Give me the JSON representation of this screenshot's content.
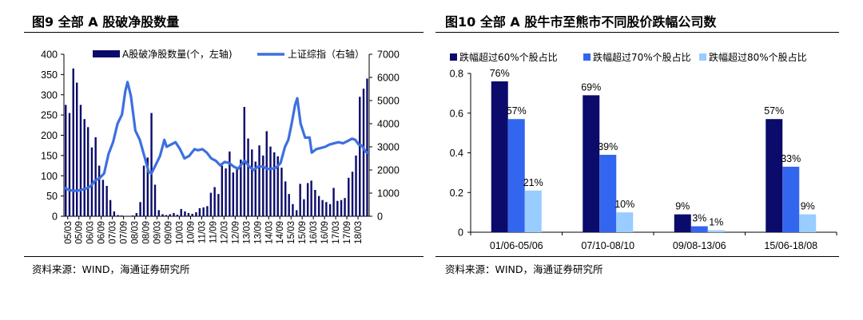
{
  "left_panel": {
    "title": "图9  全部 A 股破净股数量",
    "source": "资料来源：WIND，海通证券研究所"
  },
  "right_panel": {
    "title": "图10 全部 A 股牛市至熊市不同股价跌幅公司数",
    "source": "资料来源：WIND，海通证券研究所"
  },
  "colors": {
    "navy": "#0b0b6b",
    "blue_line": "#3d6fe0",
    "mid_blue": "#3366ee",
    "light_blue": "#99ccff"
  },
  "chart_data": [
    {
      "type": "bar",
      "title": "图9  全部 A 股破净股数量",
      "legend": [
        "A股破净股数量(个，左轴)",
        "上证综指（右轴）"
      ],
      "legend_position": "top-right",
      "x_tick_labels": [
        "05/03",
        "05/09",
        "06/03",
        "06/09",
        "07/03",
        "07/09",
        "08/03",
        "08/09",
        "09/03",
        "09/09",
        "10/03",
        "10/09",
        "11/03",
        "11/09",
        "12/03",
        "12/09",
        "13/03",
        "13/09",
        "14/03",
        "14/09",
        "15/03",
        "15/09",
        "16/03",
        "16/09",
        "17/03",
        "17/09",
        "18/03"
      ],
      "y_left_ticks": [
        "0",
        "50",
        "100",
        "150",
        "200",
        "250",
        "300",
        "350",
        "400"
      ],
      "y_left_range": [
        0,
        400
      ],
      "y_right_ticks": [
        "0",
        "1000",
        "2000",
        "3000",
        "4000",
        "5000",
        "6000",
        "7000"
      ],
      "y_right_range": [
        0,
        7000
      ],
      "x_range_years": [
        2005.0,
        2018.67
      ],
      "series": [
        {
          "name": "A股破净股数量(个，左轴)",
          "type": "bar",
          "axis": "left",
          "x": [
            2005.08,
            2005.25,
            2005.42,
            2005.58,
            2005.75,
            2005.92,
            2006.08,
            2006.25,
            2006.42,
            2006.58,
            2006.75,
            2006.92,
            2007.08,
            2007.25,
            2007.42,
            2007.58,
            2007.75,
            2007.92,
            2008.08,
            2008.25,
            2008.42,
            2008.58,
            2008.75,
            2008.92,
            2009.08,
            2009.25,
            2009.42,
            2009.58,
            2009.75,
            2009.92,
            2010.08,
            2010.25,
            2010.42,
            2010.58,
            2010.75,
            2010.92,
            2011.08,
            2011.25,
            2011.42,
            2011.58,
            2011.75,
            2011.92,
            2012.08,
            2012.25,
            2012.42,
            2012.58,
            2012.75,
            2012.92,
            2013.08,
            2013.25,
            2013.42,
            2013.58,
            2013.75,
            2013.92,
            2014.08,
            2014.25,
            2014.42,
            2014.58,
            2014.75,
            2014.92,
            2015.08,
            2015.25,
            2015.42,
            2015.58,
            2015.75,
            2015.92,
            2016.08,
            2016.25,
            2016.42,
            2016.58,
            2016.75,
            2016.92,
            2017.08,
            2017.25,
            2017.42,
            2017.58,
            2017.75,
            2017.92,
            2018.08,
            2018.25,
            2018.42,
            2018.58
          ],
          "values": [
            275,
            255,
            365,
            330,
            275,
            240,
            220,
            170,
            195,
            125,
            90,
            75,
            40,
            12,
            3,
            2,
            1,
            1,
            2,
            8,
            35,
            125,
            145,
            255,
            78,
            15,
            5,
            3,
            5,
            8,
            4,
            18,
            12,
            8,
            6,
            10,
            20,
            22,
            25,
            58,
            72,
            55,
            125,
            118,
            160,
            108,
            120,
            140,
            270,
            192,
            165,
            135,
            175,
            150,
            210,
            172,
            158,
            148,
            120,
            86,
            55,
            30,
            15,
            80,
            42,
            82,
            88,
            65,
            50,
            40,
            35,
            30,
            70,
            38,
            40,
            45,
            95,
            110,
            150,
            295,
            315,
            340
          ]
        },
        {
          "name": "上证综指（右轴）",
          "type": "line",
          "axis": "right",
          "x": [
            2005.0,
            2005.2,
            2005.4,
            2005.6,
            2005.8,
            2006.0,
            2006.2,
            2006.4,
            2006.6,
            2006.8,
            2007.0,
            2007.2,
            2007.4,
            2007.6,
            2007.75,
            2007.85,
            2008.0,
            2008.2,
            2008.4,
            2008.6,
            2008.8,
            2008.92,
            2009.1,
            2009.3,
            2009.5,
            2009.6,
            2009.8,
            2010.0,
            2010.2,
            2010.4,
            2010.6,
            2010.85,
            2011.0,
            2011.2,
            2011.4,
            2011.6,
            2011.8,
            2012.0,
            2012.2,
            2012.4,
            2012.6,
            2012.8,
            2012.95,
            2013.1,
            2013.3,
            2013.5,
            2013.7,
            2013.9,
            2014.1,
            2014.3,
            2014.5,
            2014.7,
            2014.9,
            2015.05,
            2015.2,
            2015.35,
            2015.45,
            2015.6,
            2015.8,
            2016.0,
            2016.1,
            2016.3,
            2016.5,
            2016.7,
            2016.9,
            2017.1,
            2017.3,
            2017.5,
            2017.7,
            2017.9,
            2018.05,
            2018.2,
            2018.35,
            2018.5,
            2018.6,
            2018.67
          ],
          "values": [
            1250,
            1150,
            1100,
            1100,
            1150,
            1200,
            1300,
            1550,
            1650,
            1850,
            2700,
            3200,
            4000,
            4400,
            5400,
            5800,
            5200,
            3700,
            3300,
            2600,
            1900,
            1850,
            2200,
            2600,
            3300,
            3000,
            3100,
            3200,
            2900,
            2500,
            2600,
            2900,
            2850,
            2900,
            2750,
            2500,
            2400,
            2200,
            2350,
            2300,
            2150,
            2050,
            2250,
            2400,
            2150,
            2000,
            2150,
            2150,
            2050,
            2050,
            2100,
            2300,
            3000,
            3300,
            4000,
            4800,
            5100,
            4000,
            3400,
            3400,
            2750,
            2900,
            2950,
            3000,
            3100,
            3150,
            3200,
            3150,
            3250,
            3350,
            3300,
            3100,
            3050,
            2800,
            2750,
            2700
          ]
        }
      ]
    },
    {
      "type": "bar",
      "title": "图10 全部 A 股牛市至熊市不同股价跌幅公司数",
      "categories": [
        "01/06-05/06",
        "07/10-08/10",
        "09/08-13/06",
        "15/06-18/08"
      ],
      "y_ticks": [
        "0",
        "0.2",
        "0.4",
        "0.6",
        "0.8"
      ],
      "ylim": [
        0,
        0.8
      ],
      "legend_position": "top",
      "series": [
        {
          "name": "跌幅超过60%个股占比",
          "values": [
            0.76,
            0.69,
            0.09,
            0.57
          ],
          "labels": [
            "76%",
            "69%",
            "9%",
            "57%"
          ]
        },
        {
          "name": "跌幅超过70%个股占比",
          "values": [
            0.57,
            0.39,
            0.03,
            0.33
          ],
          "labels": [
            "57%",
            "39%",
            "3%",
            "33%"
          ]
        },
        {
          "name": "跌幅超过80%个股占比",
          "values": [
            0.21,
            0.1,
            0.01,
            0.09
          ],
          "labels": [
            "21%",
            "10%",
            "1%",
            "9%"
          ]
        }
      ]
    }
  ]
}
